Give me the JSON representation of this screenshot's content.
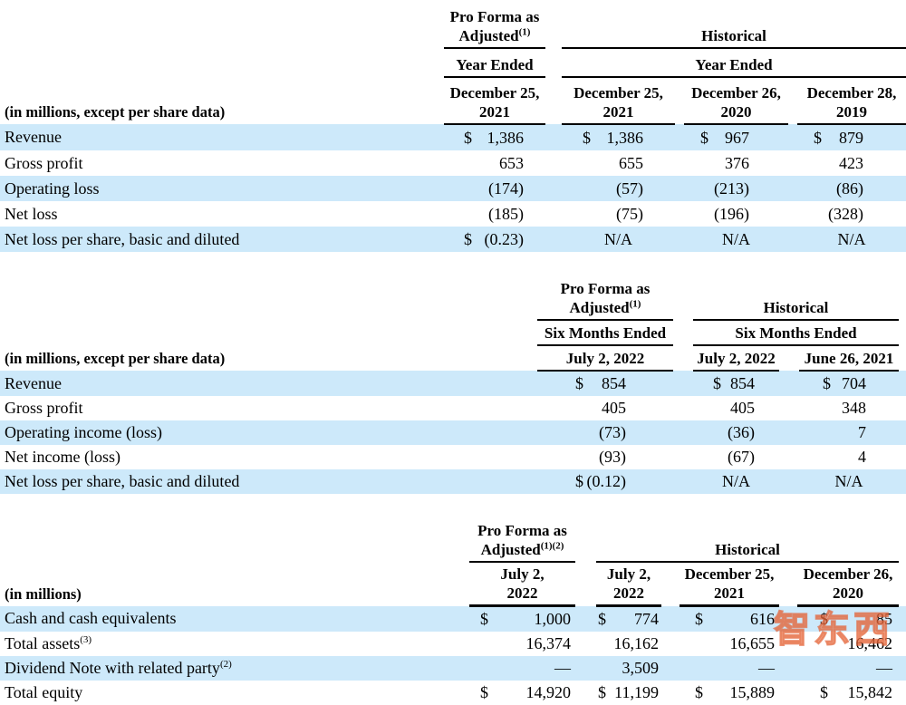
{
  "colors": {
    "row_highlight": "#cde9fa",
    "rule": "#000000",
    "watermark_orange": "#e8703f"
  },
  "watermark": {
    "text": "智东西"
  },
  "tables": [
    {
      "row_label_note": "(in millions, except per share data)",
      "pro_forma": {
        "line1": "Pro Forma as",
        "line2": "Adjusted",
        "sup": "(1)",
        "period": "Year Ended",
        "date": {
          "line1": "December 25,",
          "line2": "2021"
        }
      },
      "historical": {
        "title": "Historical",
        "period": "Year Ended",
        "dates": [
          {
            "line1": "December 25,",
            "line2": "2021"
          },
          {
            "line1": "December 26,",
            "line2": "2020"
          },
          {
            "line1": "December 28,",
            "line2": "2019"
          }
        ]
      },
      "rows": [
        {
          "label": "Revenue",
          "highlight": true,
          "cells": [
            {
              "prefix": "$",
              "value": "1,386"
            },
            {
              "prefix": "$",
              "value": "1,386"
            },
            {
              "prefix": "$",
              "value": "967"
            },
            {
              "prefix": "$",
              "value": "879"
            }
          ]
        },
        {
          "label": "Gross profit",
          "highlight": false,
          "cells": [
            {
              "value": "653"
            },
            {
              "value": "655"
            },
            {
              "value": "376"
            },
            {
              "value": "423"
            }
          ]
        },
        {
          "label": "Operating loss",
          "highlight": true,
          "cells": [
            {
              "value": "(174)"
            },
            {
              "value": "(57)"
            },
            {
              "value": "(213)"
            },
            {
              "value": "(86)"
            }
          ]
        },
        {
          "label": "Net loss",
          "highlight": false,
          "cells": [
            {
              "value": "(185)"
            },
            {
              "value": "(75)"
            },
            {
              "value": "(196)"
            },
            {
              "value": "(328)"
            }
          ]
        },
        {
          "label": "Net loss per share, basic and diluted",
          "highlight": true,
          "cells": [
            {
              "prefix": "$",
              "value": "(0.23)"
            },
            {
              "value": "N/A",
              "align": "center"
            },
            {
              "value": "N/A",
              "align": "center"
            },
            {
              "value": "N/A",
              "align": "center"
            }
          ]
        }
      ]
    },
    {
      "row_label_note": "(in millions, except per share data)",
      "pro_forma": {
        "line1": "Pro Forma as",
        "line2": "Adjusted",
        "sup": "(1)",
        "period": "Six Months Ended",
        "date": {
          "line1": "July 2, 2022"
        }
      },
      "historical": {
        "title": "Historical",
        "period": "Six Months Ended",
        "dates": [
          {
            "line1": "July 2, 2022"
          },
          {
            "line1": "June 26, 2021"
          }
        ]
      },
      "rows": [
        {
          "label": "Revenue",
          "highlight": true,
          "cells": [
            {
              "prefix": "$",
              "value": "854"
            },
            {
              "prefix": "$",
              "value": "854"
            },
            {
              "prefix": "$",
              "value": "704"
            }
          ]
        },
        {
          "label": "Gross profit",
          "highlight": false,
          "cells": [
            {
              "value": "405"
            },
            {
              "value": "405"
            },
            {
              "value": "348"
            }
          ]
        },
        {
          "label": "Operating income (loss)",
          "highlight": true,
          "cells": [
            {
              "value": "(73)"
            },
            {
              "value": "(36)"
            },
            {
              "value": "7"
            }
          ]
        },
        {
          "label": "Net income (loss)",
          "highlight": false,
          "cells": [
            {
              "value": "(93)"
            },
            {
              "value": "(67)"
            },
            {
              "value": "4"
            }
          ]
        },
        {
          "label": "Net loss per share, basic and diluted",
          "highlight": true,
          "cells": [
            {
              "prefix": "$",
              "value": "(0.12)"
            },
            {
              "value": "N/A",
              "align": "center"
            },
            {
              "value": "N/A",
              "align": "center"
            }
          ]
        }
      ]
    },
    {
      "row_label_note": "(in millions)",
      "pro_forma": {
        "line1": "Pro Forma as",
        "line2": "Adjusted",
        "sup": "(1)(2)",
        "date": {
          "line1": "July 2,",
          "line2": "2022"
        }
      },
      "historical": {
        "title": "Historical",
        "dates": [
          {
            "line1": "July 2,",
            "line2": "2022"
          },
          {
            "line1": "December 25,",
            "line2": "2021"
          },
          {
            "line1": "December 26,",
            "line2": "2020"
          }
        ]
      },
      "rows": [
        {
          "label": "Cash and cash equivalents",
          "highlight": true,
          "cells": [
            {
              "prefix": "$",
              "value": "1,000"
            },
            {
              "prefix": "$",
              "value": "774"
            },
            {
              "prefix": "$",
              "value": "616"
            },
            {
              "prefix": "$",
              "value": "85"
            }
          ]
        },
        {
          "label": "Total assets",
          "sup": "(3)",
          "highlight": false,
          "cells": [
            {
              "value": "16,374"
            },
            {
              "value": "16,162"
            },
            {
              "value": "16,655"
            },
            {
              "value": "16,462"
            }
          ]
        },
        {
          "label": "Dividend Note with related party",
          "sup": "(2)",
          "highlight": true,
          "cells": [
            {
              "value": "—"
            },
            {
              "value": "3,509"
            },
            {
              "value": "—"
            },
            {
              "value": "—"
            }
          ]
        },
        {
          "label": "Total equity",
          "highlight": false,
          "cells": [
            {
              "prefix": "$",
              "value": "14,920"
            },
            {
              "prefix": "$",
              "value": "11,199"
            },
            {
              "prefix": "$",
              "value": "15,889"
            },
            {
              "prefix": "$",
              "value": "15,842"
            }
          ]
        }
      ]
    }
  ]
}
